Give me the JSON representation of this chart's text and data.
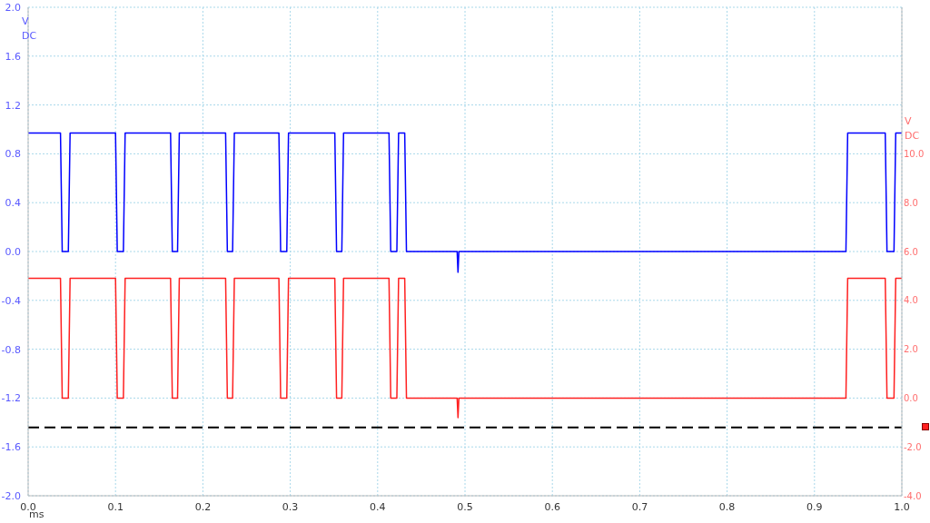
{
  "chart_data": {
    "type": "line",
    "xlabel": "ms",
    "ylabel": "V DC",
    "y2label": "V DC",
    "xlim": [
      0,
      1
    ],
    "xticks": [
      {
        "value": 0,
        "label": "0.0"
      },
      {
        "value": 0.1,
        "label": "0.1"
      },
      {
        "value": 0.2,
        "label": "0.2"
      },
      {
        "value": 0.3,
        "label": "0.3"
      },
      {
        "value": 0.4,
        "label": "0.4"
      },
      {
        "value": 0.5,
        "label": "0.5"
      },
      {
        "value": 0.6,
        "label": "0.6"
      },
      {
        "value": 0.7,
        "label": "0.7"
      },
      {
        "value": 0.8,
        "label": "0.8"
      },
      {
        "value": 0.9,
        "label": "0.9"
      },
      {
        "value": 1,
        "label": "1.0"
      }
    ],
    "ylim": [
      -2,
      2
    ],
    "yticks": [
      {
        "value": -2,
        "label": "-2.0"
      },
      {
        "value": -1.6,
        "label": "-1.6"
      },
      {
        "value": -1.2,
        "label": "-1.2"
      },
      {
        "value": -0.8,
        "label": "-0.8"
      },
      {
        "value": -0.4,
        "label": "-0.4"
      },
      {
        "value": 0,
        "label": "0.0"
      },
      {
        "value": 0.4,
        "label": "0.4"
      },
      {
        "value": 0.8,
        "label": "0.8"
      },
      {
        "value": 1.2,
        "label": "1.2"
      },
      {
        "value": 1.6,
        "label": "1.6"
      },
      {
        "value": 2,
        "label": "2.0"
      }
    ],
    "y2lim": [
      -4,
      16
    ],
    "y2ticks": [
      {
        "value": -4,
        "label": "-4.0"
      },
      {
        "value": -2,
        "label": "-2.0"
      },
      {
        "value": 0,
        "label": "0.0"
      },
      {
        "value": 2,
        "label": "2.0"
      },
      {
        "value": 4,
        "label": "4.0"
      },
      {
        "value": 6,
        "label": "6.0"
      },
      {
        "value": 8,
        "label": "8.0"
      },
      {
        "value": 10,
        "label": "10.0"
      }
    ],
    "grid": true,
    "marker": "none",
    "line_style": "solid",
    "ref_lines": [
      {
        "axis": "y",
        "value": -1.44,
        "color": "#000000",
        "line_style": "dashed"
      }
    ],
    "series": [
      {
        "color": "#0000ff",
        "x": [
          0,
          0.037,
          0.039,
          0.046,
          0.048,
          0.1,
          0.102,
          0.109,
          0.111,
          0.163,
          0.165,
          0.171,
          0.173,
          0.226,
          0.228,
          0.234,
          0.236,
          0.287,
          0.289,
          0.296,
          0.298,
          0.351,
          0.353,
          0.359,
          0.361,
          0.413,
          0.415,
          0.422,
          0.424,
          0.431,
          0.433,
          0.491,
          0.492,
          0.493,
          0.936,
          0.938,
          0.981,
          0.983,
          0.991,
          0.993,
          1
        ],
        "values": [
          0.97,
          0.97,
          0,
          0,
          0.97,
          0.97,
          0,
          0,
          0.97,
          0.97,
          0,
          0,
          0.97,
          0.97,
          0,
          0,
          0.97,
          0.97,
          0,
          0,
          0.97,
          0.97,
          0,
          0,
          0.97,
          0.97,
          0,
          0,
          0.97,
          0.97,
          0,
          0,
          -0.17,
          0,
          0,
          0.97,
          0.97,
          0,
          0,
          0.97,
          0.97
        ]
      },
      {
        "color": "#ff2020",
        "axis": "y2",
        "x": [
          0,
          0.037,
          0.039,
          0.046,
          0.048,
          0.1,
          0.102,
          0.109,
          0.111,
          0.163,
          0.165,
          0.171,
          0.173,
          0.226,
          0.228,
          0.234,
          0.236,
          0.287,
          0.289,
          0.296,
          0.298,
          0.351,
          0.353,
          0.359,
          0.361,
          0.413,
          0.415,
          0.422,
          0.424,
          0.431,
          0.433,
          0.491,
          0.492,
          0.493,
          0.936,
          0.938,
          0.981,
          0.983,
          0.991,
          0.993,
          1
        ],
        "values": [
          4.9,
          4.9,
          0,
          0,
          4.9,
          4.9,
          0,
          0,
          4.9,
          4.9,
          0,
          0,
          4.9,
          4.9,
          0,
          0,
          4.9,
          4.9,
          0,
          0,
          4.9,
          4.9,
          0,
          0,
          4.9,
          4.9,
          0,
          0,
          4.9,
          4.9,
          0,
          0,
          -0.8,
          0,
          0,
          4.9,
          4.9,
          0,
          0,
          4.9,
          4.9
        ]
      }
    ]
  }
}
